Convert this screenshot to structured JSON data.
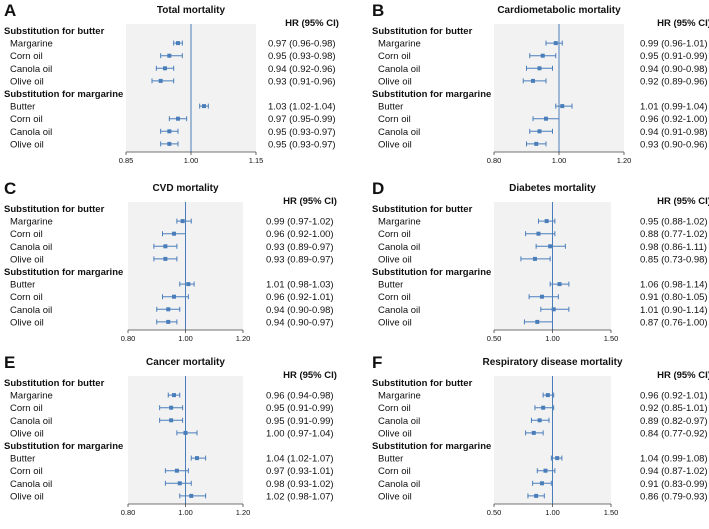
{
  "headings": {
    "hr_column": "HR (95% CI)",
    "group_butter": "Substitution for butter",
    "group_margarine": "Substitution for margarine"
  },
  "colors": {
    "marker": "#4a7ebb",
    "plot_background": "#f2f2f2",
    "reference_line": "#4a7ebb",
    "axis": "#444444"
  },
  "chart_data": [
    {
      "type": "forest",
      "letter": "A",
      "title": "Total mortality",
      "ticks": [
        "0.85",
        "1.00",
        "1.15"
      ],
      "xlim": [
        0.85,
        1.15
      ],
      "reference": 1.0,
      "rows": [
        {
          "label": "Margarine",
          "hr": 0.97,
          "lo": 0.96,
          "hi": 0.98,
          "text": "0.97 (0.96-0.98)"
        },
        {
          "label": "Corn oil",
          "hr": 0.95,
          "lo": 0.93,
          "hi": 0.98,
          "text": "0.95 (0.93-0.98)"
        },
        {
          "label": "Canola oil",
          "hr": 0.94,
          "lo": 0.92,
          "hi": 0.96,
          "text": "0.94 (0.92-0.96)"
        },
        {
          "label": "Olive oil",
          "hr": 0.93,
          "lo": 0.91,
          "hi": 0.96,
          "text": "0.93 (0.91-0.96)"
        },
        {
          "label": "Butter",
          "hr": 1.03,
          "lo": 1.02,
          "hi": 1.04,
          "text": "1.03 (1.02-1.04)"
        },
        {
          "label": "Corn oil",
          "hr": 0.97,
          "lo": 0.95,
          "hi": 0.99,
          "text": "0.97 (0.95-0.99)"
        },
        {
          "label": "Canola oil",
          "hr": 0.95,
          "lo": 0.93,
          "hi": 0.97,
          "text": "0.95 (0.93-0.97)"
        },
        {
          "label": "Olive oil",
          "hr": 0.95,
          "lo": 0.93,
          "hi": 0.97,
          "text": "0.95 (0.93-0.97)"
        }
      ]
    },
    {
      "type": "forest",
      "letter": "B",
      "title": "Cardiometabolic mortality",
      "ticks": [
        "0.80",
        "1.00",
        "1.20"
      ],
      "xlim": [
        0.8,
        1.2
      ],
      "reference": 1.0,
      "rows": [
        {
          "label": "Margarine",
          "hr": 0.99,
          "lo": 0.96,
          "hi": 1.01,
          "text": "0.99 (0.96-1.01)"
        },
        {
          "label": "Corn oil",
          "hr": 0.95,
          "lo": 0.91,
          "hi": 0.99,
          "text": "0.95 (0.91-0.99)"
        },
        {
          "label": "Canola oil",
          "hr": 0.94,
          "lo": 0.9,
          "hi": 0.98,
          "text": "0.94 (0.90-0.98)"
        },
        {
          "label": "Olive oil",
          "hr": 0.92,
          "lo": 0.89,
          "hi": 0.96,
          "text": "0.92 (0.89-0.96)"
        },
        {
          "label": "Butter",
          "hr": 1.01,
          "lo": 0.99,
          "hi": 1.04,
          "text": "1.01 (0.99-1.04)"
        },
        {
          "label": "Corn oil",
          "hr": 0.96,
          "lo": 0.92,
          "hi": 1.0,
          "text": "0.96 (0.92-1.00)"
        },
        {
          "label": "Canola oil",
          "hr": 0.94,
          "lo": 0.91,
          "hi": 0.98,
          "text": "0.94 (0.91-0.98)"
        },
        {
          "label": "Olive oil",
          "hr": 0.93,
          "lo": 0.9,
          "hi": 0.96,
          "text": "0.93 (0.90-0.96)"
        }
      ]
    },
    {
      "type": "forest",
      "letter": "C",
      "title": "CVD mortality",
      "ticks": [
        "0.80",
        "1.00",
        "1.20"
      ],
      "xlim": [
        0.8,
        1.2
      ],
      "reference": 1.0,
      "rows": [
        {
          "label": "Margarine",
          "hr": 0.99,
          "lo": 0.97,
          "hi": 1.02,
          "text": "0.99 (0.97-1.02)"
        },
        {
          "label": "Corn oil",
          "hr": 0.96,
          "lo": 0.92,
          "hi": 1.0,
          "text": "0.96 (0.92-1.00)"
        },
        {
          "label": "Canola oil",
          "hr": 0.93,
          "lo": 0.89,
          "hi": 0.97,
          "text": "0.93 (0.89-0.97)"
        },
        {
          "label": "Olive oil",
          "hr": 0.93,
          "lo": 0.89,
          "hi": 0.97,
          "text": "0.93 (0.89-0.97)"
        },
        {
          "label": "Butter",
          "hr": 1.01,
          "lo": 0.98,
          "hi": 1.03,
          "text": "1.01 (0.98-1.03)"
        },
        {
          "label": "Corn oil",
          "hr": 0.96,
          "lo": 0.92,
          "hi": 1.01,
          "text": "0.96 (0.92-1.01)"
        },
        {
          "label": "Canola oil",
          "hr": 0.94,
          "lo": 0.9,
          "hi": 0.98,
          "text": "0.94 (0.90-0.98)"
        },
        {
          "label": "Olive oil",
          "hr": 0.94,
          "lo": 0.9,
          "hi": 0.97,
          "text": "0.94 (0.90-0.97)"
        }
      ]
    },
    {
      "type": "forest",
      "letter": "D",
      "title": "Diabetes mortality",
      "ticks": [
        "0.50",
        "1.00",
        "1.50"
      ],
      "xlim": [
        0.5,
        1.5
      ],
      "reference": 1.0,
      "rows": [
        {
          "label": "Margarine",
          "hr": 0.95,
          "lo": 0.88,
          "hi": 1.02,
          "text": "0.95 (0.88-1.02)"
        },
        {
          "label": "Corn oil",
          "hr": 0.88,
          "lo": 0.77,
          "hi": 1.02,
          "text": "0.88 (0.77-1.02)"
        },
        {
          "label": "Canola oil",
          "hr": 0.98,
          "lo": 0.86,
          "hi": 1.11,
          "text": "0.98 (0.86-1.11)"
        },
        {
          "label": "Olive oil",
          "hr": 0.85,
          "lo": 0.73,
          "hi": 0.98,
          "text": "0.85 (0.73-0.98)"
        },
        {
          "label": "Butter",
          "hr": 1.06,
          "lo": 0.98,
          "hi": 1.14,
          "text": "1.06 (0.98-1.14)"
        },
        {
          "label": "Corn oil",
          "hr": 0.91,
          "lo": 0.8,
          "hi": 1.05,
          "text": "0.91 (0.80-1.05)"
        },
        {
          "label": "Canola oil",
          "hr": 1.01,
          "lo": 0.9,
          "hi": 1.14,
          "text": "1.01 (0.90-1.14)"
        },
        {
          "label": "Olive oil",
          "hr": 0.87,
          "lo": 0.76,
          "hi": 1.0,
          "text": "0.87 (0.76-1.00)"
        }
      ]
    },
    {
      "type": "forest",
      "letter": "E",
      "title": "Cancer mortality",
      "ticks": [
        "0.80",
        "1.00",
        "1.20"
      ],
      "xlim": [
        0.8,
        1.2
      ],
      "reference": 1.0,
      "rows": [
        {
          "label": "Margarine",
          "hr": 0.96,
          "lo": 0.94,
          "hi": 0.98,
          "text": "0.96 (0.94-0.98)"
        },
        {
          "label": "Corn oil",
          "hr": 0.95,
          "lo": 0.91,
          "hi": 0.99,
          "text": "0.95 (0.91-0.99)"
        },
        {
          "label": "Canola oil",
          "hr": 0.95,
          "lo": 0.91,
          "hi": 0.99,
          "text": "0.95 (0.91-0.99)"
        },
        {
          "label": "Olive oil",
          "hr": 1.0,
          "lo": 0.97,
          "hi": 1.04,
          "text": "1.00 (0.97-1.04)"
        },
        {
          "label": "Butter",
          "hr": 1.04,
          "lo": 1.02,
          "hi": 1.07,
          "text": "1.04 (1.02-1.07)"
        },
        {
          "label": "Corn oil",
          "hr": 0.97,
          "lo": 0.93,
          "hi": 1.01,
          "text": "0.97 (0.93-1.01)"
        },
        {
          "label": "Canola oil",
          "hr": 0.98,
          "lo": 0.93,
          "hi": 1.02,
          "text": "0.98 (0.93-1.02)"
        },
        {
          "label": "Olive oil",
          "hr": 1.02,
          "lo": 0.98,
          "hi": 1.07,
          "text": "1.02 (0.98-1.07)"
        }
      ]
    },
    {
      "type": "forest",
      "letter": "F",
      "title": "Respiratory disease mortality",
      "ticks": [
        "0.50",
        "1.00",
        "1.50"
      ],
      "xlim": [
        0.5,
        1.5
      ],
      "reference": 1.0,
      "rows": [
        {
          "label": "Margarine",
          "hr": 0.96,
          "lo": 0.92,
          "hi": 1.01,
          "text": "0.96 (0.92-1.01)"
        },
        {
          "label": "Corn oil",
          "hr": 0.92,
          "lo": 0.85,
          "hi": 1.01,
          "text": "0.92 (0.85-1.01)"
        },
        {
          "label": "Canola oil",
          "hr": 0.89,
          "lo": 0.82,
          "hi": 0.97,
          "text": "0.89 (0.82-0.97)"
        },
        {
          "label": "Olive oil",
          "hr": 0.84,
          "lo": 0.77,
          "hi": 0.92,
          "text": "0.84 (0.77-0.92)"
        },
        {
          "label": "Butter",
          "hr": 1.04,
          "lo": 0.99,
          "hi": 1.08,
          "text": "1.04 (0.99-1.08)"
        },
        {
          "label": "Corn oil",
          "hr": 0.94,
          "lo": 0.87,
          "hi": 1.02,
          "text": "0.94 (0.87-1.02)"
        },
        {
          "label": "Canola oil",
          "hr": 0.91,
          "lo": 0.83,
          "hi": 0.99,
          "text": "0.91 (0.83-0.99)"
        },
        {
          "label": "Olive oil",
          "hr": 0.86,
          "lo": 0.79,
          "hi": 0.93,
          "text": "0.86 (0.79-0.93)"
        }
      ]
    }
  ]
}
